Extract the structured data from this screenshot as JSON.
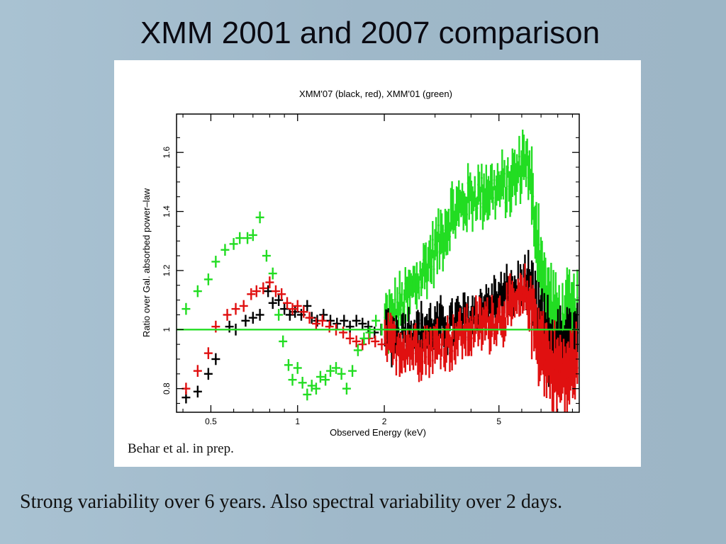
{
  "slide": {
    "title": "XMM 2001 and 2007 comparison",
    "caption": "Strong variability over 6 years. Also spectral variability over 2 days.",
    "credit": "Behar et al. in prep."
  },
  "chart_data": {
    "type": "scatter",
    "title": "XMM'07 (black, red), XMM'01 (green)",
    "xlabel": "Observed Energy (keV)",
    "ylabel": "Ratio over Gal. absorbed power–law",
    "xscale": "log",
    "xlim": [
      0.38,
      9.5
    ],
    "ylim": [
      0.72,
      1.73
    ],
    "x_ticks": [
      {
        "value": 0.5,
        "label": "0.5"
      },
      {
        "value": 1,
        "label": "1"
      },
      {
        "value": 2,
        "label": "2"
      },
      {
        "value": 5,
        "label": "5"
      }
    ],
    "y_ticks": [
      {
        "value": 0.8,
        "label": "0.8"
      },
      {
        "value": 1,
        "label": "1"
      },
      {
        "value": 1.2,
        "label": "1.2"
      },
      {
        "value": 1.4,
        "label": "1.4"
      },
      {
        "value": 1.6,
        "label": "1.6"
      }
    ],
    "reference_line": {
      "y": 1.0,
      "color": "#22dd22"
    },
    "series": [
      {
        "color": "#000000",
        "points": [
          {
            "x": 0.41,
            "y": 0.77,
            "dy": 0.02
          },
          {
            "x": 0.45,
            "y": 0.79,
            "dy": 0.02
          },
          {
            "x": 0.49,
            "y": 0.85,
            "dy": 0.02
          },
          {
            "x": 0.52,
            "y": 0.9,
            "dy": 0.02
          },
          {
            "x": 0.58,
            "y": 1.01,
            "dy": 0.02
          },
          {
            "x": 0.61,
            "y": 1.0,
            "dy": 0.02
          },
          {
            "x": 0.66,
            "y": 1.03,
            "dy": 0.02
          },
          {
            "x": 0.7,
            "y": 1.04,
            "dy": 0.02
          },
          {
            "x": 0.74,
            "y": 1.05,
            "dy": 0.02
          },
          {
            "x": 0.79,
            "y": 1.13,
            "dy": 0.02
          },
          {
            "x": 0.82,
            "y": 1.09,
            "dy": 0.02
          },
          {
            "x": 0.86,
            "y": 1.1,
            "dy": 0.02
          },
          {
            "x": 0.9,
            "y": 1.07,
            "dy": 0.02
          },
          {
            "x": 0.94,
            "y": 1.05,
            "dy": 0.02
          },
          {
            "x": 0.98,
            "y": 1.06,
            "dy": 0.02
          },
          {
            "x": 1.03,
            "y": 1.05,
            "dy": 0.02
          },
          {
            "x": 1.08,
            "y": 1.08,
            "dy": 0.02
          },
          {
            "x": 1.12,
            "y": 1.04,
            "dy": 0.02
          },
          {
            "x": 1.17,
            "y": 1.03,
            "dy": 0.02
          },
          {
            "x": 1.23,
            "y": 1.05,
            "dy": 0.02
          },
          {
            "x": 1.3,
            "y": 1.03,
            "dy": 0.02
          },
          {
            "x": 1.37,
            "y": 1.02,
            "dy": 0.02
          },
          {
            "x": 1.45,
            "y": 1.03,
            "dy": 0.02
          },
          {
            "x": 1.52,
            "y": 1.01,
            "dy": 0.02
          },
          {
            "x": 1.6,
            "y": 1.03,
            "dy": 0.02
          },
          {
            "x": 1.68,
            "y": 1.02,
            "dy": 0.02
          },
          {
            "x": 1.76,
            "y": 1.01,
            "dy": 0.02
          },
          {
            "x": 1.85,
            "y": 0.99,
            "dy": 0.02
          },
          {
            "x": 1.95,
            "y": 1.0,
            "dy": 0.02
          }
        ]
      },
      {
        "color": "#e01010",
        "points": [
          {
            "x": 0.41,
            "y": 0.8,
            "dy": 0.02
          },
          {
            "x": 0.45,
            "y": 0.86,
            "dy": 0.02
          },
          {
            "x": 0.49,
            "y": 0.92,
            "dy": 0.02
          },
          {
            "x": 0.52,
            "y": 1.01,
            "dy": 0.02
          },
          {
            "x": 0.57,
            "y": 1.05,
            "dy": 0.02
          },
          {
            "x": 0.61,
            "y": 1.07,
            "dy": 0.02
          },
          {
            "x": 0.65,
            "y": 1.08,
            "dy": 0.02
          },
          {
            "x": 0.69,
            "y": 1.12,
            "dy": 0.02
          },
          {
            "x": 0.72,
            "y": 1.13,
            "dy": 0.02
          },
          {
            "x": 0.76,
            "y": 1.14,
            "dy": 0.02
          },
          {
            "x": 0.8,
            "y": 1.16,
            "dy": 0.02
          },
          {
            "x": 0.84,
            "y": 1.13,
            "dy": 0.02
          },
          {
            "x": 0.88,
            "y": 1.12,
            "dy": 0.02
          },
          {
            "x": 0.92,
            "y": 1.09,
            "dy": 0.02
          },
          {
            "x": 0.96,
            "y": 1.07,
            "dy": 0.02
          },
          {
            "x": 1.0,
            "y": 1.08,
            "dy": 0.02
          },
          {
            "x": 1.05,
            "y": 1.06,
            "dy": 0.02
          },
          {
            "x": 1.1,
            "y": 1.04,
            "dy": 0.02
          },
          {
            "x": 1.16,
            "y": 1.02,
            "dy": 0.02
          },
          {
            "x": 1.22,
            "y": 1.03,
            "dy": 0.02
          },
          {
            "x": 1.29,
            "y": 1.01,
            "dy": 0.02
          },
          {
            "x": 1.36,
            "y": 1.0,
            "dy": 0.02
          },
          {
            "x": 1.44,
            "y": 0.99,
            "dy": 0.02
          },
          {
            "x": 1.52,
            "y": 0.97,
            "dy": 0.02
          },
          {
            "x": 1.6,
            "y": 0.96,
            "dy": 0.02
          },
          {
            "x": 1.68,
            "y": 0.95,
            "dy": 0.02
          },
          {
            "x": 1.77,
            "y": 0.97,
            "dy": 0.02
          },
          {
            "x": 1.86,
            "y": 0.96,
            "dy": 0.02
          },
          {
            "x": 1.96,
            "y": 0.95,
            "dy": 0.02
          }
        ]
      },
      {
        "color": "#22dd22",
        "points": [
          {
            "x": 0.41,
            "y": 1.07,
            "dy": 0.02
          },
          {
            "x": 0.45,
            "y": 1.13,
            "dy": 0.02
          },
          {
            "x": 0.49,
            "y": 1.17,
            "dy": 0.02
          },
          {
            "x": 0.52,
            "y": 1.23,
            "dy": 0.02
          },
          {
            "x": 0.56,
            "y": 1.27,
            "dy": 0.02
          },
          {
            "x": 0.6,
            "y": 1.29,
            "dy": 0.02
          },
          {
            "x": 0.63,
            "y": 1.31,
            "dy": 0.02
          },
          {
            "x": 0.67,
            "y": 1.31,
            "dy": 0.02
          },
          {
            "x": 0.7,
            "y": 1.32,
            "dy": 0.02
          },
          {
            "x": 0.74,
            "y": 1.38,
            "dy": 0.02
          },
          {
            "x": 0.78,
            "y": 1.25,
            "dy": 0.02
          },
          {
            "x": 0.82,
            "y": 1.19,
            "dy": 0.02
          },
          {
            "x": 0.86,
            "y": 1.05,
            "dy": 0.02
          },
          {
            "x": 0.89,
            "y": 0.96,
            "dy": 0.02
          },
          {
            "x": 0.93,
            "y": 0.88,
            "dy": 0.02
          },
          {
            "x": 0.96,
            "y": 0.83,
            "dy": 0.02
          },
          {
            "x": 1.0,
            "y": 0.87,
            "dy": 0.02
          },
          {
            "x": 1.04,
            "y": 0.82,
            "dy": 0.02
          },
          {
            "x": 1.08,
            "y": 0.78,
            "dy": 0.02
          },
          {
            "x": 1.12,
            "y": 0.81,
            "dy": 0.02
          },
          {
            "x": 1.16,
            "y": 0.8,
            "dy": 0.02
          },
          {
            "x": 1.2,
            "y": 0.84,
            "dy": 0.02
          },
          {
            "x": 1.25,
            "y": 0.83,
            "dy": 0.02
          },
          {
            "x": 1.3,
            "y": 0.86,
            "dy": 0.02
          },
          {
            "x": 1.36,
            "y": 0.87,
            "dy": 0.02
          },
          {
            "x": 1.42,
            "y": 0.85,
            "dy": 0.02
          },
          {
            "x": 1.48,
            "y": 0.8,
            "dy": 0.02
          },
          {
            "x": 1.55,
            "y": 0.86,
            "dy": 0.02
          },
          {
            "x": 1.62,
            "y": 0.93,
            "dy": 0.02
          },
          {
            "x": 1.7,
            "y": 0.97,
            "dy": 0.02
          },
          {
            "x": 1.78,
            "y": 0.99,
            "dy": 0.02
          },
          {
            "x": 1.87,
            "y": 1.03,
            "dy": 0.02
          },
          {
            "x": 1.96,
            "y": 1.0,
            "dy": 0.02
          }
        ]
      }
    ],
    "dense_segments": [
      {
        "color": "#22dd22",
        "x_range": [
          2.0,
          9.4
        ],
        "profile": [
          {
            "x": 2.0,
            "y": 1.02
          },
          {
            "x": 2.3,
            "y": 1.08
          },
          {
            "x": 2.6,
            "y": 1.16
          },
          {
            "x": 3.0,
            "y": 1.27
          },
          {
            "x": 3.4,
            "y": 1.38
          },
          {
            "x": 4.0,
            "y": 1.45
          },
          {
            "x": 4.6,
            "y": 1.47
          },
          {
            "x": 5.2,
            "y": 1.48
          },
          {
            "x": 5.8,
            "y": 1.52
          },
          {
            "x": 6.2,
            "y": 1.6
          },
          {
            "x": 6.6,
            "y": 1.4
          },
          {
            "x": 7.2,
            "y": 1.12
          },
          {
            "x": 8.0,
            "y": 1.0
          },
          {
            "x": 9.4,
            "y": 1.05
          }
        ],
        "scatter": 0.06,
        "errbar": 0.055
      },
      {
        "color": "#000000",
        "x_range": [
          2.0,
          9.4
        ],
        "profile": [
          {
            "x": 2.0,
            "y": 0.98
          },
          {
            "x": 2.5,
            "y": 0.99
          },
          {
            "x": 3.0,
            "y": 1.0
          },
          {
            "x": 3.5,
            "y": 1.02
          },
          {
            "x": 4.0,
            "y": 1.04
          },
          {
            "x": 5.0,
            "y": 1.1
          },
          {
            "x": 5.8,
            "y": 1.13
          },
          {
            "x": 6.3,
            "y": 1.16
          },
          {
            "x": 6.8,
            "y": 1.02
          },
          {
            "x": 7.5,
            "y": 0.94
          },
          {
            "x": 8.5,
            "y": 0.92
          },
          {
            "x": 9.4,
            "y": 0.97
          }
        ],
        "scatter": 0.045,
        "errbar": 0.05
      },
      {
        "color": "#e01010",
        "x_range": [
          2.0,
          9.4
        ],
        "profile": [
          {
            "x": 2.0,
            "y": 0.95
          },
          {
            "x": 2.5,
            "y": 0.94
          },
          {
            "x": 3.0,
            "y": 0.94
          },
          {
            "x": 3.5,
            "y": 0.97
          },
          {
            "x": 4.0,
            "y": 1.0
          },
          {
            "x": 5.0,
            "y": 1.04
          },
          {
            "x": 5.8,
            "y": 1.09
          },
          {
            "x": 6.3,
            "y": 1.12
          },
          {
            "x": 6.8,
            "y": 0.98
          },
          {
            "x": 7.5,
            "y": 0.88
          },
          {
            "x": 8.5,
            "y": 0.84
          },
          {
            "x": 9.4,
            "y": 0.9
          }
        ],
        "scatter": 0.05,
        "errbar": 0.05
      }
    ]
  }
}
